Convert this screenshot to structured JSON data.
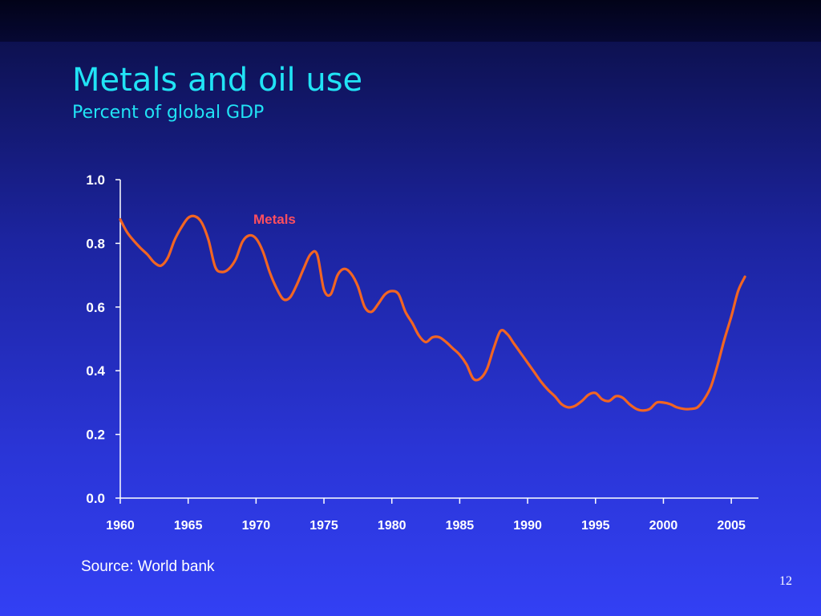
{
  "slide": {
    "title": "Metals and oil use",
    "subtitle": "Percent of global GDP",
    "source": "Source: World bank",
    "page_number": "12"
  },
  "colors": {
    "title": "#21e3f5",
    "series_line": "#f26522",
    "series_label": "#ff4f5e",
    "axis": "#ffffff"
  },
  "chart_data": {
    "type": "line",
    "title": "Metals and oil use",
    "subtitle": "Percent of global GDP",
    "xlabel": "",
    "ylabel": "",
    "xlim": [
      1960,
      2007
    ],
    "ylim": [
      0,
      1
    ],
    "x_ticks": [
      1960,
      1965,
      1970,
      1975,
      1980,
      1985,
      1990,
      1995,
      2000,
      2005
    ],
    "y_ticks": [
      "0.0",
      "0.2",
      "0.4",
      "0.6",
      "0.8",
      "1.0"
    ],
    "grid": false,
    "series": [
      {
        "name": "Metals",
        "x": [
          1960.0,
          1960.5,
          1961.0,
          1961.5,
          1962.0,
          1962.5,
          1963.0,
          1963.5,
          1964.0,
          1964.5,
          1965.0,
          1965.5,
          1966.0,
          1966.5,
          1967.0,
          1967.5,
          1968.0,
          1968.5,
          1969.0,
          1969.5,
          1970.0,
          1970.5,
          1971.0,
          1971.5,
          1972.0,
          1972.5,
          1973.0,
          1973.5,
          1974.0,
          1974.5,
          1975.0,
          1975.5,
          1976.0,
          1976.5,
          1977.0,
          1977.5,
          1978.0,
          1978.5,
          1979.0,
          1979.5,
          1980.0,
          1980.5,
          1981.0,
          1981.5,
          1982.0,
          1982.5,
          1983.0,
          1983.5,
          1984.0,
          1984.5,
          1985.0,
          1985.5,
          1986.0,
          1986.5,
          1987.0,
          1987.5,
          1988.0,
          1988.5,
          1989.0,
          1989.5,
          1990.0,
          1990.5,
          1991.0,
          1991.5,
          1992.0,
          1992.5,
          1993.0,
          1993.5,
          1994.0,
          1994.5,
          1995.0,
          1995.5,
          1996.0,
          1996.5,
          1997.0,
          1997.5,
          1998.0,
          1998.5,
          1999.0,
          1999.5,
          2000.0,
          2000.5,
          2001.0,
          2001.5,
          2002.0,
          2002.5,
          2003.0,
          2003.5,
          2004.0,
          2004.5,
          2005.0,
          2005.5,
          2006.0
        ],
        "y": [
          0.875,
          0.835,
          0.808,
          0.785,
          0.765,
          0.74,
          0.73,
          0.755,
          0.81,
          0.85,
          0.88,
          0.885,
          0.865,
          0.81,
          0.725,
          0.71,
          0.72,
          0.75,
          0.805,
          0.825,
          0.815,
          0.775,
          0.71,
          0.66,
          0.625,
          0.63,
          0.67,
          0.72,
          0.765,
          0.765,
          0.655,
          0.64,
          0.7,
          0.72,
          0.705,
          0.665,
          0.6,
          0.585,
          0.61,
          0.64,
          0.65,
          0.64,
          0.585,
          0.55,
          0.51,
          0.49,
          0.505,
          0.505,
          0.49,
          0.47,
          0.45,
          0.42,
          0.375,
          0.375,
          0.405,
          0.47,
          0.525,
          0.515,
          0.485,
          0.455,
          0.425,
          0.395,
          0.365,
          0.34,
          0.32,
          0.295,
          0.285,
          0.29,
          0.305,
          0.325,
          0.33,
          0.31,
          0.305,
          0.32,
          0.315,
          0.295,
          0.28,
          0.275,
          0.28,
          0.3,
          0.3,
          0.295,
          0.285,
          0.28,
          0.28,
          0.285,
          0.31,
          0.35,
          0.42,
          0.5,
          0.57,
          0.65,
          0.695
        ]
      }
    ]
  }
}
